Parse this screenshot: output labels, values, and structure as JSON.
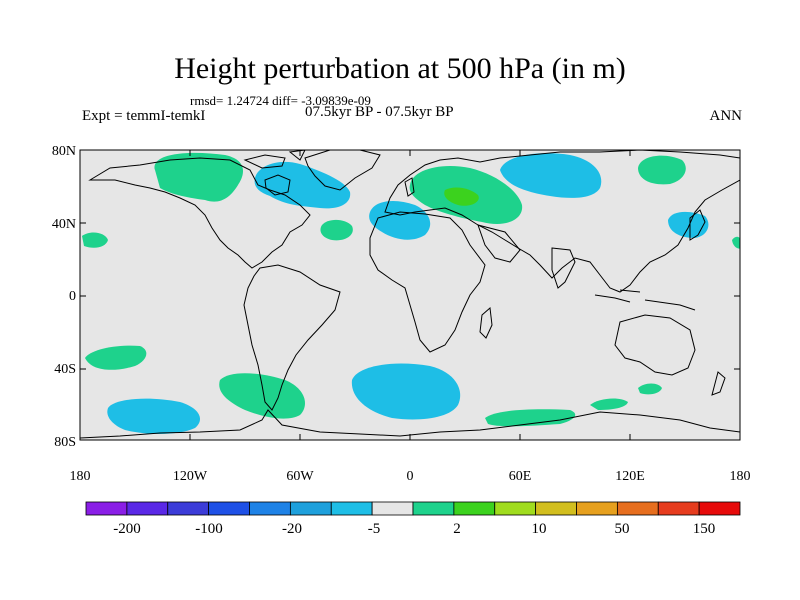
{
  "title": "Height perturbation at 500 hPa (in m)",
  "stats": "rmsd= 1.24724  diff= -3.09839e-09",
  "expt": "Expt = temmI-temkI",
  "period": "07.5kyr BP - 07.5kyr BP",
  "season": "ANN",
  "map": {
    "lat_labels": [
      "80N",
      "40N",
      "0",
      "40S",
      "80S"
    ],
    "lon_labels": [
      "180",
      "120W",
      "60W",
      "0",
      "60E",
      "120E",
      "180"
    ],
    "background_color": "#e6e6e6"
  },
  "colorbar": {
    "colors": [
      "#8a1ee6",
      "#5a28e6",
      "#3c3cd8",
      "#1e50e6",
      "#1e82e6",
      "#1ea0dc",
      "#1ebee6",
      "#e6e6e6",
      "#1ed28c",
      "#3cd21e",
      "#a0dc1e",
      "#d2be1e",
      "#e6a01e",
      "#e66e1e",
      "#e63c1e",
      "#e60a0a"
    ],
    "labels": [
      "-200",
      "-100",
      "-20",
      "-5",
      "2",
      "10",
      "50",
      "150"
    ]
  }
}
